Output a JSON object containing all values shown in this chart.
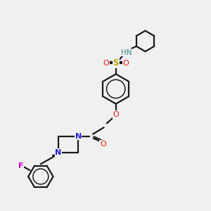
{
  "bg_color": "#f0f0f0",
  "bond_color": "#1a1a1a",
  "colors": {
    "N": "#2020cc",
    "O": "#ee1111",
    "S": "#bbaa00",
    "F": "#cc00cc",
    "HN": "#448888",
    "C": "#1a1a1a"
  },
  "lw": 1.6
}
